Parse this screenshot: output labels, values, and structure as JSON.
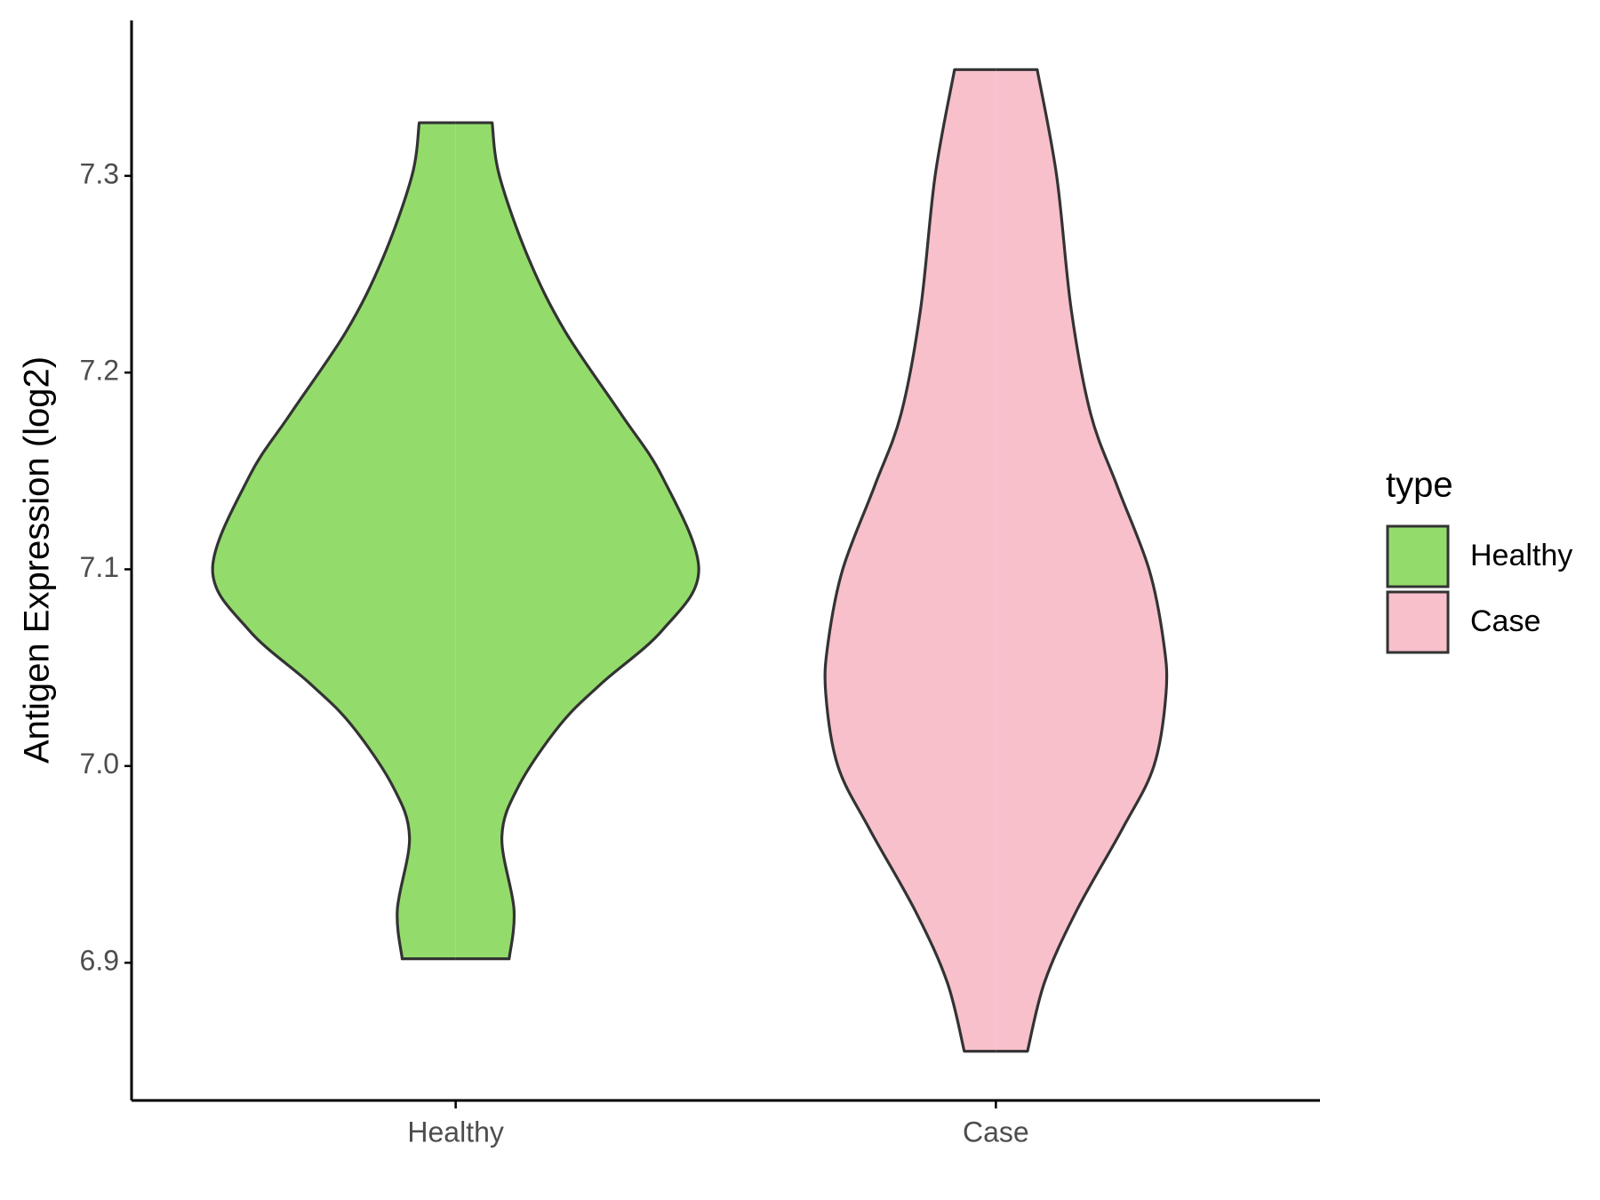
{
  "chart_data": {
    "type": "violin",
    "y_label": "Antigen Expression (log2)",
    "legend_title": "type",
    "legend": "right",
    "categories": [
      "Healthy",
      "Case"
    ],
    "series": [
      {
        "name": "Healthy",
        "color": "#93dc6b",
        "y": [
          7.327,
          7.3,
          7.258,
          7.221,
          7.179,
          7.147,
          7.1,
          7.069,
          7.042,
          7.021,
          6.99,
          6.964,
          6.927,
          6.902
        ],
        "density": [
          0.15,
          0.18,
          0.3,
          0.45,
          0.68,
          0.85,
          1.0,
          0.85,
          0.6,
          0.43,
          0.26,
          0.19,
          0.24,
          0.22
        ]
      },
      {
        "name": "Case",
        "color": "#f7c0cb",
        "y": [
          7.354,
          7.3,
          7.232,
          7.179,
          7.142,
          7.1,
          7.063,
          7.037,
          7.0,
          6.968,
          6.926,
          6.89,
          6.855
        ],
        "density": [
          0.17,
          0.25,
          0.31,
          0.39,
          0.5,
          0.63,
          0.69,
          0.7,
          0.65,
          0.52,
          0.33,
          0.2,
          0.13
        ]
      }
    ],
    "ylim": [
      6.83,
      7.379
    ],
    "yticks": [
      6.9,
      {
        "value": 7,
        "label": "7.0"
      },
      7.1,
      7.2,
      7.3
    ]
  }
}
